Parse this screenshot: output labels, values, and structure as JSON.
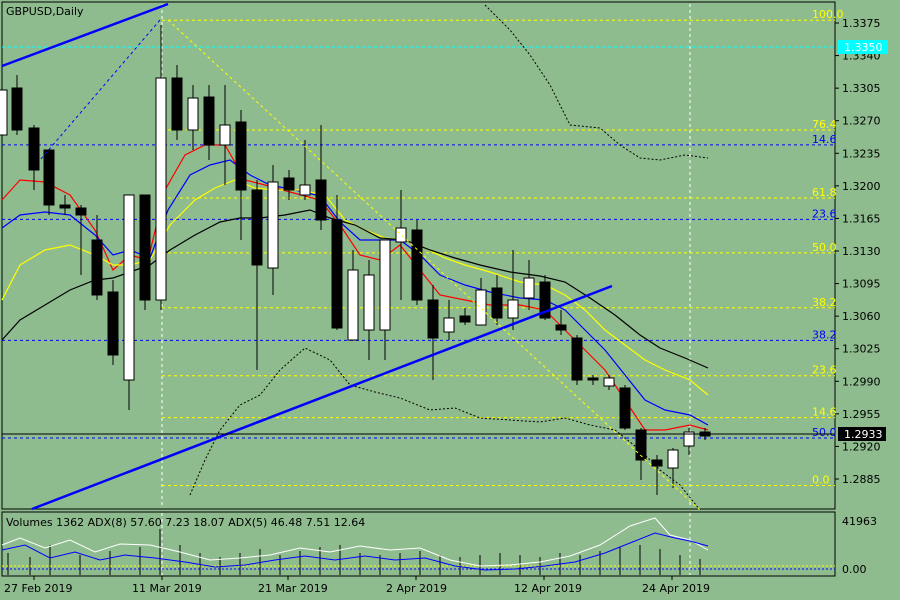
{
  "window": {
    "title": "GBPUSD,Daily"
  },
  "price_panel": {
    "current_price": "1.2933",
    "marker_price": "1.3350",
    "y_axis_ticks": [
      "1.3375",
      "1.3340",
      "1.3305",
      "1.3270",
      "1.3235",
      "1.3200",
      "1.3165",
      "1.3130",
      "1.3095",
      "1.3060",
      "1.3025",
      "1.2990",
      "1.2955",
      "1.2920",
      "1.2885"
    ],
    "fib_yellow": [
      {
        "label": "100.0",
        "price": 1.3378
      },
      {
        "label": "76.4",
        "price": 1.326
      },
      {
        "label": "61.8",
        "price": 1.3187
      },
      {
        "label": "50.0",
        "price": 1.3128
      },
      {
        "label": "38.2",
        "price": 1.3069
      },
      {
        "label": "23.6",
        "price": 1.2996
      },
      {
        "label": "14.6",
        "price": 1.2951
      },
      {
        "label": "0.0",
        "price": 1.2878
      }
    ],
    "fib_blue": [
      {
        "label": "14.6",
        "price": 1.3244
      },
      {
        "label": "23.6",
        "price": 1.3164
      },
      {
        "label": "38.2",
        "price": 1.3034
      },
      {
        "label": "50.0",
        "price": 1.2929
      }
    ]
  },
  "indicator_panel": {
    "label": "Volumes 1362 ADX(8) 57.60 7.23 18.07 ADX(5) 46.48 7.51 12.64",
    "y_axis_top": "41963",
    "y_axis_bottom": "0.00"
  },
  "x_axis": {
    "labels": [
      "27 Feb 2019",
      "11 Mar 2019",
      "21 Mar 2019",
      "2 Apr 2019",
      "12 Apr 2019",
      "24 Apr 2019"
    ]
  },
  "colors": {
    "background": "#8fbc8f",
    "bull_candle": "#ffffff",
    "bear_candle": "#000000",
    "trendline": "#0000ff",
    "fib_yellow": "#ffff00",
    "fib_blue": "#0000ff",
    "ma_red": "#ff0000",
    "ma_blue": "#0000ff",
    "ma_yellow": "#ffff00",
    "ma_black": "#000000",
    "marker_bg": "#00ffff"
  }
}
